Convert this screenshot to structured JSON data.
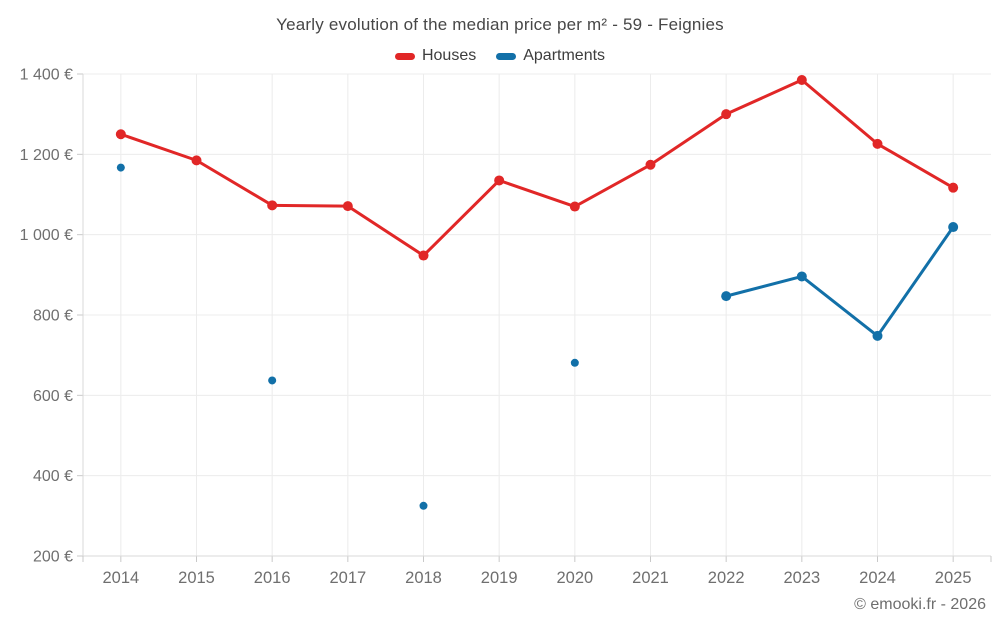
{
  "header": {
    "title": "Yearly evolution of the median price per m² - 59 - Feignies"
  },
  "chart_data": {
    "type": "line",
    "title": "Yearly evolution of the median price per m² - 59 - Feignies",
    "categories": [
      "2014",
      "2015",
      "2016",
      "2017",
      "2018",
      "2019",
      "2020",
      "2021",
      "2022",
      "2023",
      "2024",
      "2025"
    ],
    "series": [
      {
        "name": "Houses",
        "color": "#e12727",
        "values": [
          1250,
          1185,
          1073,
          1071,
          948,
          1135,
          1070,
          1174,
          1300,
          1385,
          1226,
          1117
        ]
      },
      {
        "name": "Apartments",
        "color": "#1270a8",
        "values": [
          1167,
          null,
          637,
          null,
          325,
          null,
          681,
          null,
          847,
          896,
          748,
          1019
        ]
      }
    ],
    "ylim": [
      200,
      1400
    ],
    "y_ticks": [
      200,
      400,
      600,
      800,
      1000,
      1200,
      1400
    ],
    "y_tick_labels": [
      "200 €",
      "400 €",
      "600 €",
      "800 €",
      "1 000 €",
      "1 200 €",
      "1 400 €"
    ],
    "xlabel": "",
    "ylabel": "",
    "grid": true,
    "legend_position": "top",
    "colors": {
      "grid": "#ececec",
      "axis": "#d9d9d9",
      "tick": "#c9c9c9",
      "tick_label": "#6f6f6f"
    }
  },
  "footer": {
    "copyright": "© emooki.fr - 2026"
  }
}
